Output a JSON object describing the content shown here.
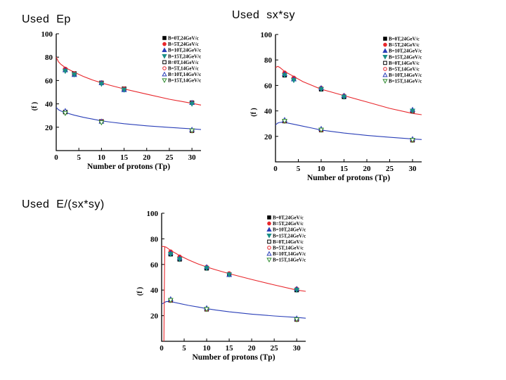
{
  "labels": {
    "panel1": "Used  Ep",
    "panel2": "Used  sx*sy",
    "panel3": "Used  E/(sx*sy)"
  },
  "chart_data": [
    {
      "type": "scatter",
      "title": "",
      "xlabel": "Number of protons (Tp)",
      "ylabel": "(f  )",
      "xlim": [
        0,
        32
      ],
      "ylim": [
        0,
        100
      ],
      "xticks": [
        0,
        5,
        10,
        15,
        20,
        25,
        30
      ],
      "yticks": [
        20,
        40,
        60,
        80,
        100
      ],
      "legend": "top-right",
      "colors": {
        "red": "#e8262b",
        "blue": "#2a3fb8",
        "black": "#000000",
        "teal": "#1b8f86",
        "green": "#2e8b2e"
      },
      "series": [
        {
          "name": "B=0T,24GeV/c",
          "marker": "square",
          "filled": true,
          "color": "#000000",
          "x": [
            2,
            4,
            10,
            15,
            30
          ],
          "y": [
            69,
            66,
            58,
            53,
            41
          ]
        },
        {
          "name": "B=5T,24GeV/c",
          "marker": "circle",
          "filled": true,
          "color": "#e8262b",
          "x": [
            2,
            4,
            10,
            15,
            30
          ],
          "y": [
            70,
            66,
            58,
            53,
            41
          ]
        },
        {
          "name": "B=10T,24GeV/c",
          "marker": "triangle",
          "filled": true,
          "color": "#2a3fb8",
          "x": [
            2,
            4,
            10,
            15,
            30
          ],
          "y": [
            69,
            65,
            58,
            52,
            41
          ]
        },
        {
          "name": "B=15T,24GeV/c",
          "marker": "triangle-down",
          "filled": true,
          "color": "#1b8f86",
          "x": [
            2,
            4,
            10,
            15,
            30
          ],
          "y": [
            68,
            65,
            57,
            52,
            40
          ]
        },
        {
          "name": "B=0T,14GeV/c",
          "marker": "square",
          "filled": false,
          "color": "#000000",
          "x": [
            2,
            10,
            30
          ],
          "y": [
            33,
            25,
            17
          ]
        },
        {
          "name": "B=5T,14GeV/c",
          "marker": "circle",
          "filled": false,
          "color": "#e8262b",
          "x": [
            2,
            10,
            30
          ],
          "y": [
            33,
            25,
            17
          ]
        },
        {
          "name": "B=10T,14GeV/c",
          "marker": "triangle",
          "filled": false,
          "color": "#2a3fb8",
          "x": [
            2,
            10,
            30
          ],
          "y": [
            34,
            25,
            18
          ]
        },
        {
          "name": "B=15T,14GeV/c",
          "marker": "triangle-down",
          "filled": false,
          "color": "#2e8b2e",
          "x": [
            2,
            10,
            30
          ],
          "y": [
            32,
            24,
            17
          ]
        }
      ],
      "fits": [
        {
          "color": "#e8262b",
          "x": [
            0,
            0.5,
            1,
            2,
            4,
            6,
            8,
            10,
            12,
            15,
            20,
            25,
            30,
            32
          ],
          "y": [
            80,
            76,
            74,
            71,
            67,
            63.5,
            60.5,
            58,
            55.8,
            52.8,
            48.3,
            44,
            40.5,
            39
          ]
        },
        {
          "color": "#2a3fb8",
          "x": [
            0,
            0.5,
            1,
            2,
            4,
            6,
            8,
            10,
            12,
            15,
            20,
            25,
            30,
            32
          ],
          "y": [
            37,
            35,
            34,
            32.5,
            30.3,
            28.5,
            27,
            25.5,
            24.4,
            23,
            21.2,
            19.8,
            18.6,
            18
          ]
        }
      ]
    },
    {
      "type": "scatter",
      "title": "",
      "xlabel": "Number of protons (Tp)",
      "ylabel": "(f  )",
      "xlim": [
        0,
        32
      ],
      "ylim": [
        0,
        100
      ],
      "xticks": [
        0,
        5,
        10,
        15,
        20,
        25,
        30
      ],
      "yticks": [
        20,
        40,
        60,
        80,
        100
      ],
      "legend": "top-right",
      "series": [
        {
          "name": "B=0T,24GeV/c",
          "marker": "square",
          "filled": true,
          "color": "#000000",
          "x": [
            2,
            4,
            10,
            15,
            30
          ],
          "y": [
            68,
            65,
            57,
            51,
            40
          ]
        },
        {
          "name": "B=5T,24GeV/c",
          "marker": "circle",
          "filled": true,
          "color": "#e8262b",
          "x": [
            2,
            4,
            10,
            15,
            30
          ],
          "y": [
            70,
            66,
            58,
            52,
            40
          ]
        },
        {
          "name": "B=10T,24GeV/c",
          "marker": "triangle",
          "filled": true,
          "color": "#2a3fb8",
          "x": [
            2,
            4,
            10,
            15,
            30
          ],
          "y": [
            69,
            65,
            58,
            52,
            41
          ]
        },
        {
          "name": "B=15T,24GeV/c",
          "marker": "triangle-down",
          "filled": true,
          "color": "#1b8f86",
          "x": [
            2,
            4,
            10,
            15,
            30
          ],
          "y": [
            68,
            64,
            57,
            51,
            40
          ]
        },
        {
          "name": "B=0T,14GeV/c",
          "marker": "square",
          "filled": false,
          "color": "#000000",
          "x": [
            2,
            10,
            30
          ],
          "y": [
            32,
            25,
            17
          ]
        },
        {
          "name": "B=5T,14GeV/c",
          "marker": "circle",
          "filled": false,
          "color": "#e8262b",
          "x": [
            2,
            10,
            30
          ],
          "y": [
            32,
            25,
            17
          ]
        },
        {
          "name": "B=10T,14GeV/c",
          "marker": "triangle",
          "filled": false,
          "color": "#2a3fb8",
          "x": [
            2,
            10,
            30
          ],
          "y": [
            33,
            26,
            18
          ]
        },
        {
          "name": "B=15T,14GeV/c",
          "marker": "triangle-down",
          "filled": false,
          "color": "#2e8b2e",
          "x": [
            2,
            10,
            30
          ],
          "y": [
            32,
            25,
            17
          ]
        }
      ],
      "fits": [
        {
          "color": "#e8262b",
          "x": [
            0,
            0.5,
            1,
            2,
            4,
            6,
            8,
            10,
            12,
            15,
            20,
            25,
            30,
            32
          ],
          "y": [
            74,
            75,
            74,
            71,
            67,
            63,
            60,
            57,
            55,
            52,
            47,
            42,
            38,
            37
          ]
        },
        {
          "color": "#2a3fb8",
          "x": [
            0,
            0.5,
            1,
            2,
            4,
            6,
            8,
            10,
            12,
            15,
            20,
            25,
            30,
            32
          ],
          "y": [
            29,
            30.5,
            31,
            31,
            29.5,
            28,
            26.5,
            25,
            24,
            22.6,
            20.8,
            19.3,
            18,
            17.5
          ]
        }
      ]
    },
    {
      "type": "scatter",
      "title": "",
      "xlabel": "Number of protons (Tp)",
      "ylabel": "(f  )",
      "xlim": [
        0,
        32
      ],
      "ylim": [
        0,
        100
      ],
      "xticks": [
        0,
        5,
        10,
        15,
        20,
        25,
        30
      ],
      "yticks": [
        20,
        40,
        60,
        80,
        100
      ],
      "legend": "top-right",
      "series": [
        {
          "name": "B=0T,24GeV/c",
          "marker": "square",
          "filled": true,
          "color": "#000000",
          "x": [
            2,
            4,
            10,
            15,
            30
          ],
          "y": [
            68,
            64,
            57,
            52,
            40
          ]
        },
        {
          "name": "B=5T,24GeV/c",
          "marker": "circle",
          "filled": true,
          "color": "#e8262b",
          "x": [
            2,
            4,
            10,
            15,
            30
          ],
          "y": [
            70,
            66,
            58,
            53,
            41
          ]
        },
        {
          "name": "B=10T,24GeV/c",
          "marker": "triangle",
          "filled": true,
          "color": "#2a3fb8",
          "x": [
            2,
            4,
            10,
            15,
            30
          ],
          "y": [
            69,
            65,
            58,
            52,
            41
          ]
        },
        {
          "name": "B=15T,24GeV/c",
          "marker": "triangle-down",
          "filled": true,
          "color": "#1b8f86",
          "x": [
            2,
            4,
            10,
            15,
            30
          ],
          "y": [
            68,
            64,
            57,
            52,
            40
          ]
        },
        {
          "name": "B=0T,14GeV/c",
          "marker": "square",
          "filled": false,
          "color": "#000000",
          "x": [
            2,
            10,
            30
          ],
          "y": [
            32,
            25,
            17
          ]
        },
        {
          "name": "B=5T,14GeV/c",
          "marker": "circle",
          "filled": false,
          "color": "#e8262b",
          "x": [
            2,
            10,
            30
          ],
          "y": [
            32,
            25,
            17
          ]
        },
        {
          "name": "B=10T,14GeV/c",
          "marker": "triangle",
          "filled": false,
          "color": "#2a3fb8",
          "x": [
            2,
            10,
            30
          ],
          "y": [
            33,
            26,
            18
          ]
        },
        {
          "name": "B=15T,14GeV/c",
          "marker": "triangle-down",
          "filled": false,
          "color": "#2e8b2e",
          "x": [
            2,
            10,
            30
          ],
          "y": [
            32,
            25,
            17
          ]
        }
      ],
      "fits": [
        {
          "color": "#e8262b",
          "x": [
            0,
            0.5,
            1,
            2,
            4,
            6,
            8,
            10,
            12,
            15,
            20,
            25,
            30,
            32
          ],
          "y": [
            74,
            74,
            73.5,
            71,
            67,
            63.5,
            60.5,
            58,
            55.8,
            52.8,
            48.3,
            44,
            40,
            39
          ]
        },
        {
          "color": "#2a3fb8",
          "x": [
            0,
            0.5,
            1,
            2,
            4,
            6,
            8,
            10,
            12,
            15,
            20,
            25,
            30,
            32
          ],
          "y": [
            29,
            30,
            31,
            31,
            29.5,
            28,
            26.8,
            25.5,
            24.4,
            23,
            21.2,
            19.8,
            18.6,
            18
          ]
        },
        {
          "color": "#e8262b",
          "x": [
            0.5,
            0.6,
            0.7
          ],
          "y": [
            0,
            40,
            74
          ]
        }
      ]
    }
  ]
}
